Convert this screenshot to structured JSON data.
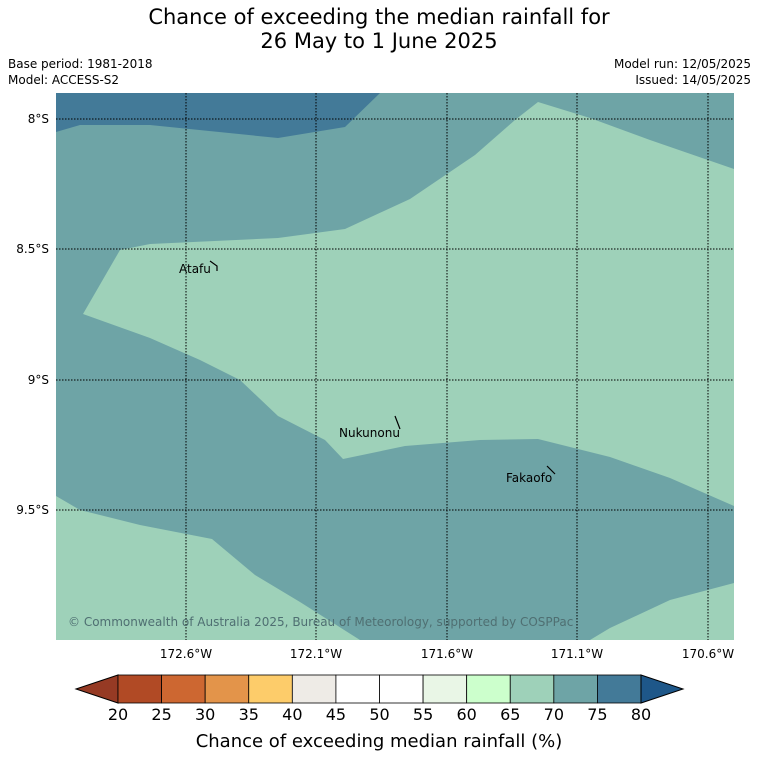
{
  "title": {
    "line1": "Chance of exceeding the median rainfall for",
    "line2": "26 May to 1 June 2025"
  },
  "meta": {
    "base_period": "Base period: 1981-2018",
    "model": "Model: ACCESS-S2",
    "model_run": "Model run: 12/05/2025",
    "issued": "Issued: 14/05/2025"
  },
  "map": {
    "lat_labels": [
      "8°S",
      "8.5°S",
      "9°S",
      "9.5°S"
    ],
    "lon_labels": [
      "172.6°W",
      "172.1°W",
      "171.6°W",
      "171.1°W",
      "170.6°W"
    ],
    "places": [
      {
        "name": "Atafu"
      },
      {
        "name": "Nukunonu"
      },
      {
        "name": "Fakaofo"
      }
    ],
    "copyright": "© Commonwealth of Australia 2025, Bureau of Meteorology, supported by COSPPac",
    "zone_colors": {
      "c65_70": "#9ed1b9",
      "c70_75": "#6ea4a6",
      "c75_80": "#437a98"
    }
  },
  "colorbar": {
    "title": "Chance of exceeding median rainfall (%)",
    "ticks": [
      "20",
      "25",
      "30",
      "35",
      "40",
      "45",
      "50",
      "55",
      "60",
      "65",
      "70",
      "75",
      "80"
    ],
    "under_color": "#963a24",
    "over_color": "#1e5789",
    "colors": [
      "#b14a25",
      "#cd6731",
      "#e3944a",
      "#fdcc6a",
      "#eeebe6",
      "#ffffff",
      "#ffffff",
      "#e9f6e6",
      "#ccffcc",
      "#9ed1b9",
      "#6ea4a6",
      "#437a98"
    ]
  }
}
